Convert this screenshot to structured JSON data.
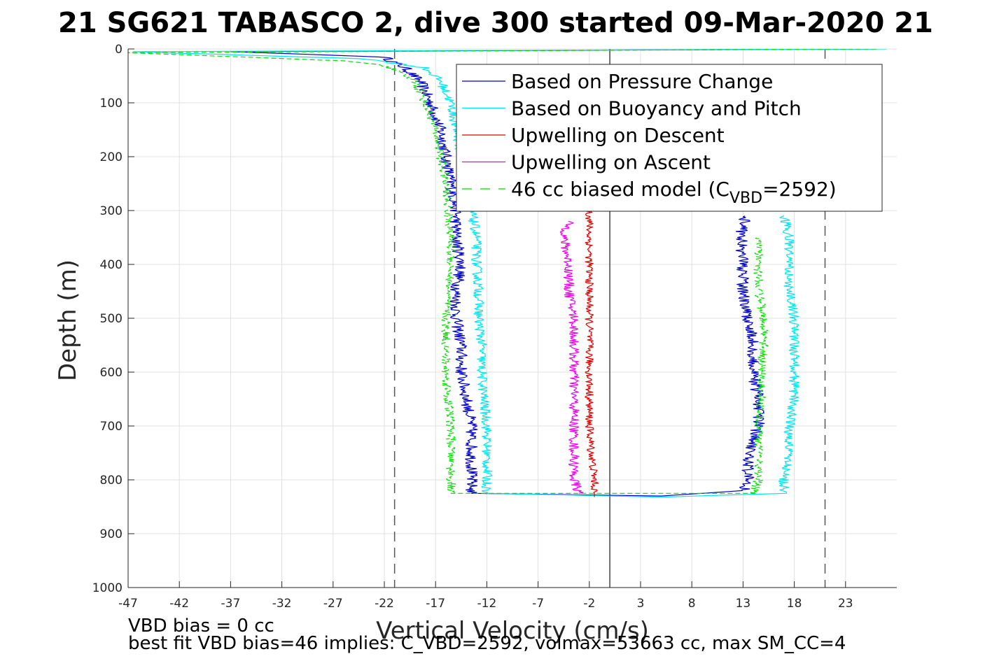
{
  "chart_data": {
    "type": "line",
    "title": "21 SG621 TABASCO 2, dive 300 started 09-Mar-2020 21",
    "xlabel": "Vertical Velocity (cm/s)",
    "ylabel": "Depth (m)",
    "xlim": [
      -47,
      28
    ],
    "ylim": [
      0,
      1000
    ],
    "y_reversed": true,
    "xticks": [
      -47,
      -42,
      -37,
      -32,
      -27,
      -22,
      -17,
      -12,
      -7,
      -2,
      3,
      8,
      13,
      18,
      23
    ],
    "yticks": [
      0,
      100,
      200,
      300,
      400,
      500,
      600,
      700,
      800,
      900,
      1000
    ],
    "grid": true,
    "legend_location": "top-right",
    "vertical_lines": [
      {
        "x": -21,
        "style": "dashed",
        "color": "#555555"
      },
      {
        "x": 0,
        "style": "solid",
        "color": "#444444"
      },
      {
        "x": 21,
        "style": "dashed",
        "color": "#555555"
      }
    ],
    "series": [
      {
        "name": "Based on Pressure Change",
        "color": "#0000cc",
        "style": "solid",
        "noise": 0.6,
        "points": [
          [
            26,
            0
          ],
          [
            -37,
            5
          ],
          [
            -22,
            15
          ],
          [
            -20,
            35
          ],
          [
            -18.5,
            60
          ],
          [
            -17.5,
            100
          ],
          [
            -16.5,
            150
          ],
          [
            -16,
            200
          ],
          [
            -15.5,
            250
          ],
          [
            -15,
            300
          ],
          [
            -15,
            350
          ],
          [
            -14.5,
            400
          ],
          [
            -15,
            450
          ],
          [
            -15,
            500
          ],
          [
            -14.5,
            550
          ],
          [
            -14.5,
            600
          ],
          [
            -14,
            650
          ],
          [
            -13.5,
            700
          ],
          [
            -13.5,
            750
          ],
          [
            -13.5,
            800
          ],
          [
            -13.5,
            825
          ],
          [
            5,
            830
          ],
          [
            13,
            820
          ],
          [
            13.5,
            800
          ],
          [
            13.5,
            750
          ],
          [
            14.5,
            700
          ],
          [
            14.5,
            650
          ],
          [
            14,
            600
          ],
          [
            14,
            550
          ],
          [
            13.5,
            500
          ],
          [
            13,
            450
          ],
          [
            13,
            400
          ],
          [
            12.8,
            350
          ],
          [
            13.2,
            310
          ]
        ]
      },
      {
        "name": "Based on Buoyancy and Pitch",
        "color": "#00e5ee",
        "style": "solid",
        "noise": 0.5,
        "points": [
          [
            27,
            0
          ],
          [
            -47,
            5
          ],
          [
            -24,
            18
          ],
          [
            -18,
            35
          ],
          [
            -16.5,
            60
          ],
          [
            -15.5,
            100
          ],
          [
            -15,
            150
          ],
          [
            -14.5,
            200
          ],
          [
            -14,
            250
          ],
          [
            -13.5,
            300
          ],
          [
            -13,
            350
          ],
          [
            -13,
            400
          ],
          [
            -12.8,
            450
          ],
          [
            -12.8,
            500
          ],
          [
            -12.5,
            550
          ],
          [
            -12.5,
            600
          ],
          [
            -12.3,
            650
          ],
          [
            -12,
            700
          ],
          [
            -12,
            750
          ],
          [
            -12,
            800
          ],
          [
            -12,
            825
          ],
          [
            5,
            832
          ],
          [
            17,
            825
          ],
          [
            17,
            800
          ],
          [
            17.5,
            750
          ],
          [
            17.5,
            700
          ],
          [
            18,
            650
          ],
          [
            18,
            600
          ],
          [
            18,
            550
          ],
          [
            18,
            500
          ],
          [
            17.5,
            450
          ],
          [
            17.5,
            400
          ],
          [
            17.5,
            350
          ],
          [
            17,
            310
          ]
        ]
      },
      {
        "name": "Upwelling on Descent",
        "color": "#e00000",
        "style": "solid",
        "noise": 0.4,
        "points": [
          [
            -2,
            300
          ],
          [
            -2,
            350
          ],
          [
            -2,
            400
          ],
          [
            -2,
            450
          ],
          [
            -2,
            500
          ],
          [
            -2,
            550
          ],
          [
            -2,
            600
          ],
          [
            -2,
            650
          ],
          [
            -2,
            700
          ],
          [
            -1.8,
            750
          ],
          [
            -1.5,
            800
          ],
          [
            -1.5,
            825
          ],
          [
            -1.5,
            832
          ]
        ]
      },
      {
        "name": "Upwelling on Ascent",
        "color": "#ee00ee",
        "style": "solid",
        "noise": 0.5,
        "points": [
          [
            -4,
            320
          ],
          [
            -4.5,
            350
          ],
          [
            -4,
            400
          ],
          [
            -4,
            450
          ],
          [
            -3.5,
            500
          ],
          [
            -3.5,
            550
          ],
          [
            -3.5,
            600
          ],
          [
            -3.5,
            650
          ],
          [
            -3.5,
            700
          ],
          [
            -3.5,
            750
          ],
          [
            -3.5,
            800
          ],
          [
            -3,
            825
          ]
        ]
      },
      {
        "name": "46 cc biased model (C_VBD=2592)",
        "legend_prefix": "46 cc biased model (C",
        "legend_sub": "VBD",
        "legend_suffix": "=2592)",
        "color": "#00dd00",
        "style": "dashed",
        "noise": 0.45,
        "points": [
          [
            26,
            0
          ],
          [
            -47,
            7
          ],
          [
            -26,
            22
          ],
          [
            -22,
            30
          ],
          [
            -19,
            60
          ],
          [
            -18,
            100
          ],
          [
            -17,
            150
          ],
          [
            -16.5,
            200
          ],
          [
            -16,
            250
          ],
          [
            -15.8,
            300
          ],
          [
            -15.5,
            350
          ],
          [
            -15.5,
            400
          ],
          [
            -15.8,
            450
          ],
          [
            -16,
            500
          ],
          [
            -16,
            550
          ],
          [
            -16,
            600
          ],
          [
            -15.8,
            650
          ],
          [
            -15.5,
            700
          ],
          [
            -15.5,
            750
          ],
          [
            -15.5,
            800
          ],
          [
            -15.5,
            825
          ],
          [
            14,
            825
          ],
          [
            14.5,
            800
          ],
          [
            14.5,
            750
          ],
          [
            14.5,
            700
          ],
          [
            14.8,
            650
          ],
          [
            14.8,
            600
          ],
          [
            15,
            550
          ],
          [
            15,
            500
          ],
          [
            14.5,
            450
          ],
          [
            14.5,
            400
          ],
          [
            14.5,
            350
          ]
        ]
      }
    ]
  },
  "footer": {
    "line1": "VBD bias = 0 cc",
    "line2": "best fit VBD bias=46 implies: C_VBD=2592, volmax=53663 cc, max SM_CC=4"
  }
}
